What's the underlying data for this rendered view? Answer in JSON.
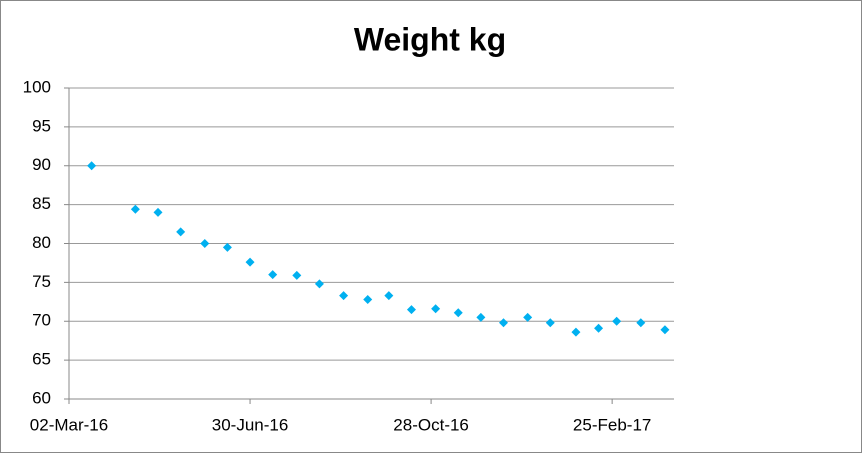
{
  "chart_data": {
    "type": "scatter",
    "title": "Weight  kg",
    "x": [
      "2016-03-17",
      "2016-04-15",
      "2016-04-30",
      "2016-05-15",
      "2016-05-31",
      "2016-06-15",
      "2016-06-30",
      "2016-07-15",
      "2016-07-31",
      "2016-08-15",
      "2016-08-31",
      "2016-09-16",
      "2016-09-30",
      "2016-10-15",
      "2016-10-31",
      "2016-11-15",
      "2016-11-30",
      "2016-12-15",
      "2016-12-31",
      "2017-01-15",
      "2017-02-01",
      "2017-02-16",
      "2017-02-28",
      "2017-03-16",
      "2017-04-01"
    ],
    "values": [
      90,
      84.4,
      84,
      81.5,
      80,
      79.5,
      77.6,
      76,
      75.9,
      74.8,
      73.3,
      72.8,
      73.3,
      71.5,
      71.6,
      71.1,
      70.5,
      69.8,
      70.5,
      69.8,
      68.6,
      69.1,
      70,
      69.8,
      68.9
    ],
    "color": "#00b0f0",
    "xlim": [
      "2016-03-02",
      "2017-04-07"
    ],
    "xticks": [
      {
        "value": "2016-03-02",
        "label": "02-Mar-16"
      },
      {
        "value": "2016-06-30",
        "label": "30-Jun-16"
      },
      {
        "value": "2016-10-28",
        "label": "28-Oct-16"
      },
      {
        "value": "2017-02-25",
        "label": "25-Feb-17"
      }
    ],
    "ylim": [
      60,
      100
    ],
    "yticks": [
      60,
      65,
      70,
      75,
      80,
      85,
      90,
      95,
      100
    ],
    "grid": true
  }
}
